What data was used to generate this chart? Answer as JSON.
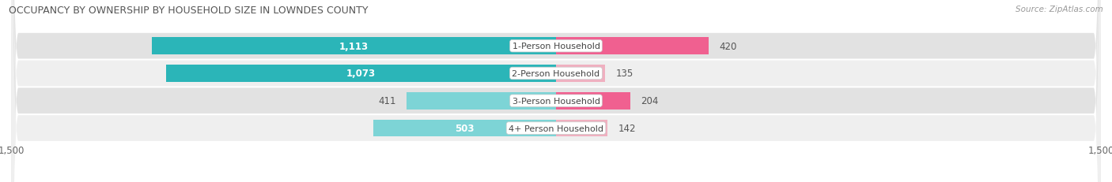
{
  "title": "OCCUPANCY BY OWNERSHIP BY HOUSEHOLD SIZE IN LOWNDES COUNTY",
  "source": "Source: ZipAtlas.com",
  "categories": [
    "1-Person Household",
    "2-Person Household",
    "3-Person Household",
    "4+ Person Household"
  ],
  "owner_values": [
    1113,
    1073,
    411,
    503
  ],
  "renter_values": [
    420,
    135,
    204,
    142
  ],
  "owner_color_dark": "#2BB5B8",
  "owner_color_light": "#7DD4D6",
  "renter_color_dark": "#F06090",
  "renter_color_light": "#F0B0C0",
  "axis_max": 1500,
  "title_fontsize": 9.0,
  "tick_fontsize": 8.5,
  "bar_label_fontsize": 8.5,
  "category_fontsize": 8.0,
  "legend_fontsize": 8.5,
  "source_fontsize": 7.5,
  "row_bg_dark": "#E2E2E2",
  "row_bg_light": "#EFEFEF"
}
